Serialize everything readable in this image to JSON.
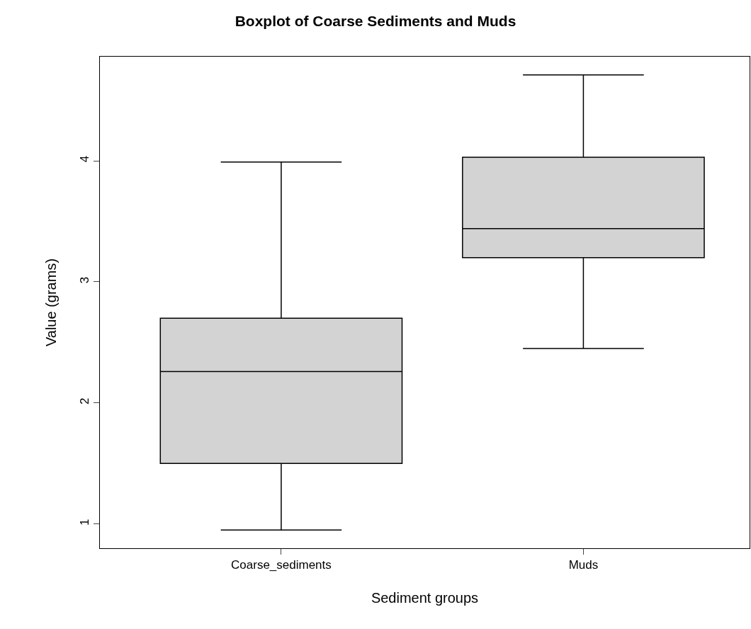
{
  "chart_data": {
    "type": "box",
    "title": "Boxplot of Coarse Sediments and Muds",
    "xlabel": "Sediment groups",
    "ylabel": "Value (grams)",
    "categories": [
      "Coarse_sediments",
      "Muds"
    ],
    "boxes": [
      {
        "low": 0.95,
        "q1": 1.5,
        "median": 2.26,
        "q3": 2.7,
        "high": 3.99
      },
      {
        "low": 2.45,
        "q1": 3.2,
        "median": 3.44,
        "q3": 4.03,
        "high": 4.71
      }
    ],
    "color": "#d3d3d3",
    "ylim": [
      0.8,
      4.86
    ],
    "yticks": [
      1,
      2,
      3,
      4
    ]
  }
}
